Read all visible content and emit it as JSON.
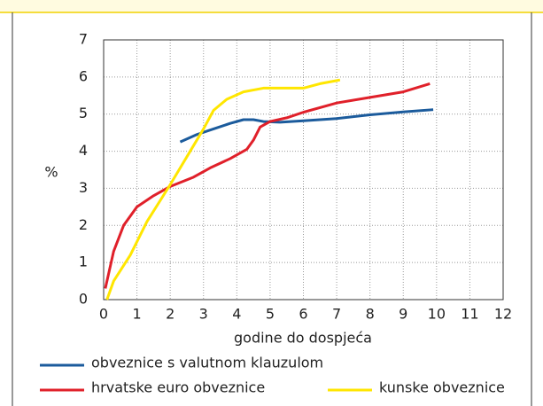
{
  "chart_data": {
    "type": "line",
    "xlabel": "godine do dospjeća",
    "ylabel": "%",
    "xlim": [
      0,
      12
    ],
    "ylim": [
      0,
      7
    ],
    "xticks": [
      0,
      1,
      2,
      3,
      4,
      5,
      6,
      7,
      8,
      9,
      10,
      11,
      12
    ],
    "yticks": [
      0,
      1,
      2,
      3,
      4,
      5,
      6,
      7
    ],
    "grid": true,
    "series": [
      {
        "name": "obveznice s valutnom klauzulom",
        "color": "#1b5b9c",
        "x": [
          2.3,
          2.8,
          3.3,
          3.8,
          4.2,
          4.5,
          4.8,
          5.3,
          6,
          7,
          8,
          9,
          9.9
        ],
        "values": [
          4.25,
          4.45,
          4.6,
          4.75,
          4.85,
          4.85,
          4.8,
          4.78,
          4.82,
          4.88,
          4.98,
          5.06,
          5.12
        ]
      },
      {
        "name": "hrvatske euro obveznice",
        "color": "#e0202a",
        "x": [
          0.05,
          0.3,
          0.6,
          1,
          1.5,
          2,
          2.7,
          3.2,
          3.8,
          4.3,
          4.5,
          4.7,
          5,
          5.5,
          6,
          7,
          8,
          9,
          9.8
        ],
        "values": [
          0.3,
          1.3,
          2.0,
          2.5,
          2.8,
          3.05,
          3.3,
          3.55,
          3.8,
          4.05,
          4.3,
          4.65,
          4.8,
          4.9,
          5.05,
          5.3,
          5.45,
          5.6,
          5.82
        ]
      },
      {
        "name": "kunske obveznice",
        "color": "#ffe600",
        "x": [
          0.1,
          0.3,
          0.8,
          1.3,
          2,
          2.6,
          3,
          3.3,
          3.7,
          4.2,
          4.8,
          5.5,
          6,
          6.5,
          7.1
        ],
        "values": [
          0,
          0.5,
          1.2,
          2.1,
          3.1,
          4.0,
          4.6,
          5.1,
          5.4,
          5.6,
          5.7,
          5.7,
          5.7,
          5.82,
          5.92
        ]
      }
    ]
  }
}
